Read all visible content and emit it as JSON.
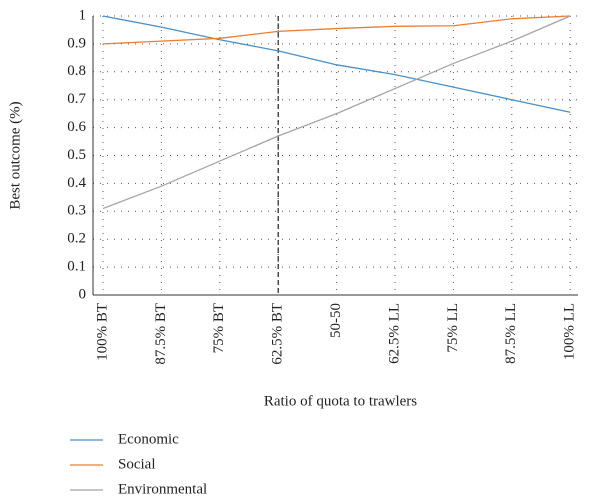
{
  "chart_data": {
    "type": "line",
    "x_label": "Ratio of quota to trawlers",
    "y_label": "Best outcome (%)",
    "categories": [
      "100% BT",
      "87.5% BT",
      "75% BT",
      "62.5% BT",
      "50-50",
      "62.5% LL",
      "75% LL",
      "87.5% LL",
      "100% LL"
    ],
    "series": [
      {
        "name": "Economic",
        "color": "#4a90c8",
        "values": [
          1.0,
          0.96,
          0.915,
          0.875,
          0.825,
          0.79,
          0.745,
          0.7,
          0.655
        ]
      },
      {
        "name": "Social",
        "color": "#ed7d31",
        "values": [
          0.9,
          0.91,
          0.92,
          0.945,
          0.955,
          0.963,
          0.965,
          0.99,
          1.0
        ]
      },
      {
        "name": "Environmental",
        "color": "#a5a5a5",
        "values": [
          0.31,
          0.39,
          0.48,
          0.57,
          0.65,
          0.74,
          0.83,
          0.91,
          1.0
        ]
      }
    ],
    "ylim": [
      0,
      1
    ],
    "yticks": [
      0,
      0.1,
      0.2,
      0.3,
      0.4,
      0.5,
      0.6,
      0.7,
      0.8,
      0.9,
      1
    ],
    "grid": true,
    "reference_line": "62.5% BT",
    "legend": "bottom-left"
  }
}
